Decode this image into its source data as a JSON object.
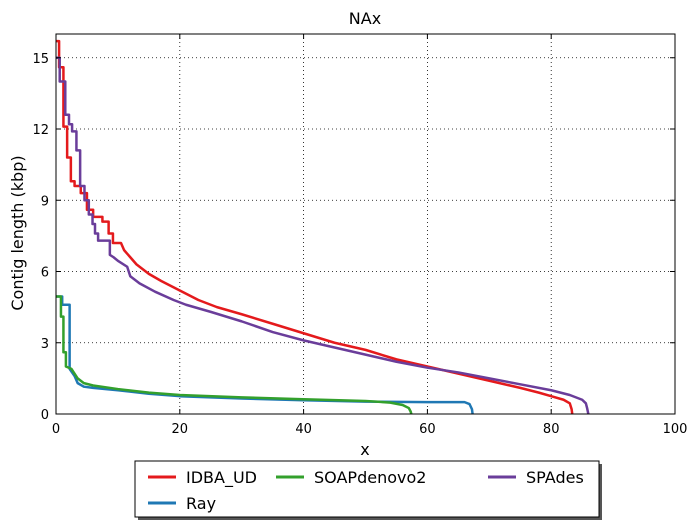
{
  "chart_data": {
    "type": "line",
    "title": "NAx",
    "xlabel": "x",
    "ylabel": "Contig length  (kbp)",
    "xlim": [
      0,
      100
    ],
    "ylim": [
      0,
      16
    ],
    "xticks": [
      0,
      20,
      40,
      60,
      80,
      100
    ],
    "yticks": [
      0,
      3,
      6,
      9,
      12,
      15
    ],
    "grid": true,
    "legend_position": "bottom-center",
    "series": [
      {
        "name": "IDBA_UD",
        "color": "#e41a1c",
        "points": [
          [
            0,
            15.7
          ],
          [
            0.5,
            15.7
          ],
          [
            0.5,
            14.6
          ],
          [
            1.2,
            14.6
          ],
          [
            1.2,
            12.1
          ],
          [
            1.8,
            12.1
          ],
          [
            1.8,
            10.8
          ],
          [
            2.4,
            10.8
          ],
          [
            2.4,
            9.8
          ],
          [
            3.0,
            9.8
          ],
          [
            3.0,
            9.6
          ],
          [
            4.0,
            9.6
          ],
          [
            4.0,
            9.3
          ],
          [
            5.0,
            9.3
          ],
          [
            5.0,
            8.6
          ],
          [
            6.0,
            8.6
          ],
          [
            6.0,
            8.3
          ],
          [
            7.5,
            8.3
          ],
          [
            7.5,
            8.1
          ],
          [
            8.5,
            8.1
          ],
          [
            8.5,
            7.6
          ],
          [
            9.2,
            7.6
          ],
          [
            9.2,
            7.2
          ],
          [
            10.5,
            7.2
          ],
          [
            11.0,
            6.9
          ],
          [
            12.0,
            6.6
          ],
          [
            13.0,
            6.3
          ],
          [
            14.0,
            6.1
          ],
          [
            15.0,
            5.9
          ],
          [
            17.0,
            5.6
          ],
          [
            20.0,
            5.2
          ],
          [
            23.0,
            4.8
          ],
          [
            26.0,
            4.5
          ],
          [
            30.0,
            4.2
          ],
          [
            35.0,
            3.8
          ],
          [
            40.0,
            3.4
          ],
          [
            45.0,
            3.0
          ],
          [
            50.0,
            2.7
          ],
          [
            55.0,
            2.3
          ],
          [
            60.0,
            2.0
          ],
          [
            65.0,
            1.7
          ],
          [
            70.0,
            1.4
          ],
          [
            75.0,
            1.1
          ],
          [
            78.0,
            0.9
          ],
          [
            80.0,
            0.75
          ],
          [
            82.0,
            0.6
          ],
          [
            83.0,
            0.45
          ],
          [
            83.3,
            0.2
          ],
          [
            83.4,
            0.0
          ]
        ]
      },
      {
        "name": "Ray",
        "color": "#1f78b4",
        "points": [
          [
            0,
            4.95
          ],
          [
            1.0,
            4.95
          ],
          [
            1.0,
            4.6
          ],
          [
            2.2,
            4.6
          ],
          [
            2.2,
            1.9
          ],
          [
            3.0,
            1.6
          ],
          [
            3.5,
            1.3
          ],
          [
            4.5,
            1.15
          ],
          [
            6.0,
            1.1
          ],
          [
            10.0,
            1.0
          ],
          [
            15.0,
            0.85
          ],
          [
            20.0,
            0.75
          ],
          [
            30.0,
            0.65
          ],
          [
            40.0,
            0.58
          ],
          [
            50.0,
            0.52
          ],
          [
            60.0,
            0.5
          ],
          [
            66.0,
            0.5
          ],
          [
            66.8,
            0.42
          ],
          [
            67.2,
            0.2
          ],
          [
            67.3,
            0.0
          ]
        ]
      },
      {
        "name": "SOAPdenovo2",
        "color": "#33a02c",
        "points": [
          [
            0,
            4.95
          ],
          [
            0.8,
            4.95
          ],
          [
            0.8,
            4.1
          ],
          [
            1.2,
            4.1
          ],
          [
            1.2,
            2.6
          ],
          [
            1.6,
            2.6
          ],
          [
            1.6,
            2.0
          ],
          [
            2.5,
            1.9
          ],
          [
            3.0,
            1.7
          ],
          [
            3.5,
            1.5
          ],
          [
            4.5,
            1.3
          ],
          [
            6.0,
            1.2
          ],
          [
            10.0,
            1.05
          ],
          [
            15.0,
            0.9
          ],
          [
            20.0,
            0.8
          ],
          [
            30.0,
            0.7
          ],
          [
            40.0,
            0.62
          ],
          [
            50.0,
            0.55
          ],
          [
            54.0,
            0.48
          ],
          [
            56.0,
            0.38
          ],
          [
            57.0,
            0.25
          ],
          [
            57.3,
            0.1
          ],
          [
            57.4,
            0.0
          ]
        ]
      },
      {
        "name": "SPAdes",
        "color": "#6a3d9a",
        "points": [
          [
            0,
            15.0
          ],
          [
            0.6,
            15.0
          ],
          [
            0.6,
            14.0
          ],
          [
            1.5,
            14.0
          ],
          [
            1.5,
            12.6
          ],
          [
            2.1,
            12.6
          ],
          [
            2.1,
            12.2
          ],
          [
            2.6,
            12.2
          ],
          [
            2.6,
            11.9
          ],
          [
            3.3,
            11.9
          ],
          [
            3.3,
            11.1
          ],
          [
            3.9,
            11.1
          ],
          [
            3.9,
            9.6
          ],
          [
            4.6,
            9.6
          ],
          [
            4.6,
            9.0
          ],
          [
            5.3,
            9.0
          ],
          [
            5.3,
            8.4
          ],
          [
            5.9,
            8.4
          ],
          [
            5.9,
            8.0
          ],
          [
            6.3,
            8.0
          ],
          [
            6.3,
            7.6
          ],
          [
            6.8,
            7.6
          ],
          [
            6.8,
            7.3
          ],
          [
            8.7,
            7.3
          ],
          [
            8.7,
            6.7
          ],
          [
            9.3,
            6.6
          ],
          [
            10.0,
            6.45
          ],
          [
            11.5,
            6.2
          ],
          [
            12.0,
            5.8
          ],
          [
            13.5,
            5.5
          ],
          [
            16.0,
            5.15
          ],
          [
            19.0,
            4.8
          ],
          [
            21.0,
            4.6
          ],
          [
            25.0,
            4.3
          ],
          [
            30.0,
            3.9
          ],
          [
            35.0,
            3.45
          ],
          [
            40.0,
            3.1
          ],
          [
            45.0,
            2.8
          ],
          [
            50.0,
            2.5
          ],
          [
            55.0,
            2.2
          ],
          [
            60.0,
            1.95
          ],
          [
            65.0,
            1.75
          ],
          [
            70.0,
            1.5
          ],
          [
            75.0,
            1.25
          ],
          [
            80.0,
            1.0
          ],
          [
            83.0,
            0.8
          ],
          [
            85.0,
            0.6
          ],
          [
            85.6,
            0.45
          ],
          [
            85.8,
            0.25
          ],
          [
            86.0,
            0.0
          ]
        ]
      }
    ]
  }
}
